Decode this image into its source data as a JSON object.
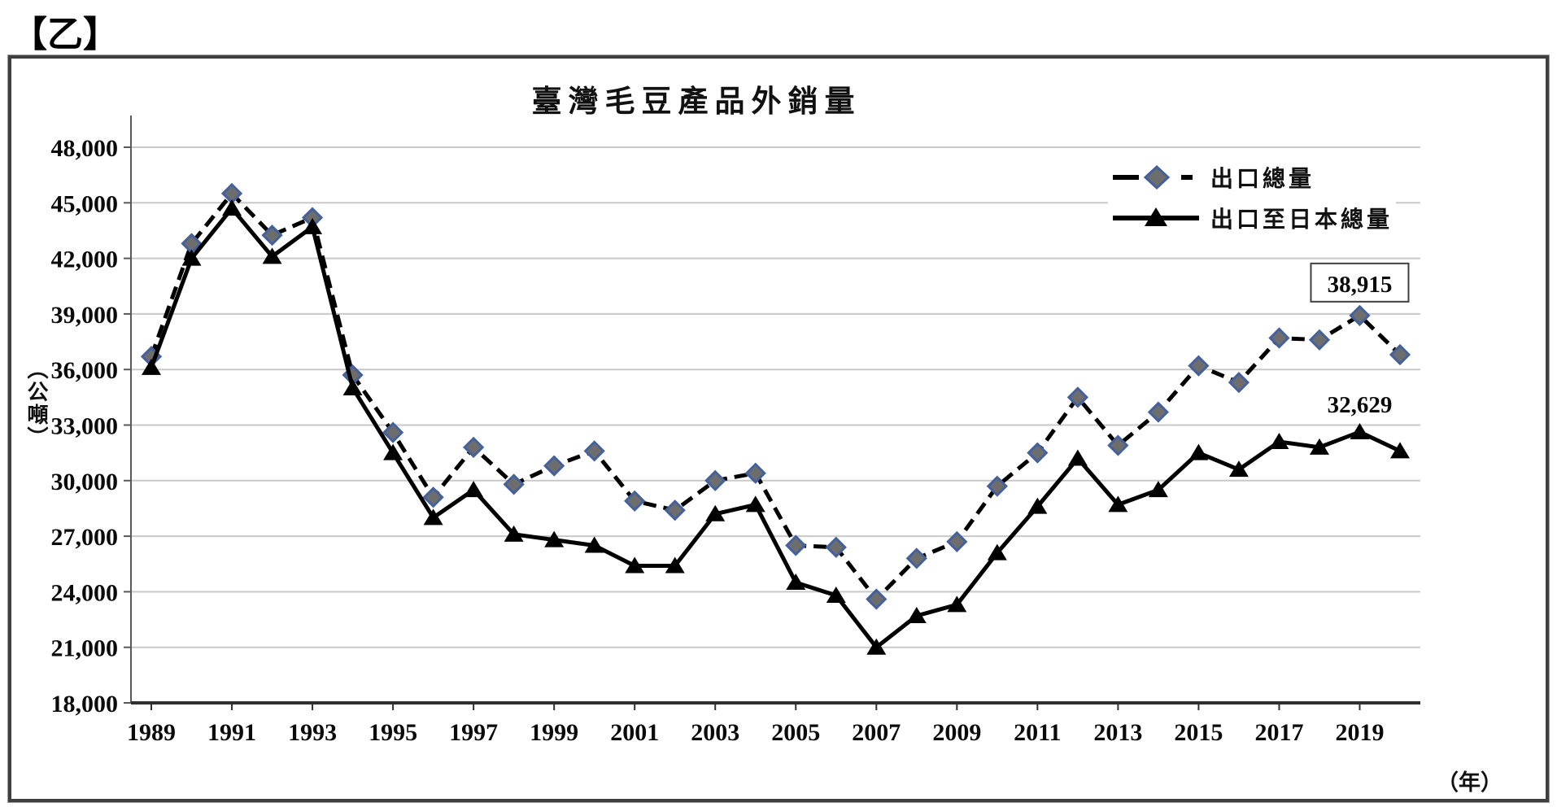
{
  "page_label": "【乙】",
  "chart_data": {
    "type": "line",
    "title": "臺灣毛豆產品外銷量",
    "y_unit": "（公噸）",
    "x_unit": "（年）",
    "ylim": [
      18000,
      48000
    ],
    "ytick_step": 3000,
    "yticks": [
      "48,000",
      "45,000",
      "42,000",
      "39,000",
      "36,000",
      "33,000",
      "30,000",
      "27,000",
      "24,000",
      "21,000",
      "18,000"
    ],
    "x": [
      1989,
      1990,
      1991,
      1992,
      1993,
      1994,
      1995,
      1996,
      1997,
      1998,
      1999,
      2000,
      2001,
      2002,
      2003,
      2004,
      2005,
      2006,
      2007,
      2008,
      2009,
      2010,
      2011,
      2012,
      2013,
      2014,
      2015,
      2016,
      2017,
      2018,
      2019,
      2020
    ],
    "xtick_labels": [
      "1989",
      "1991",
      "1993",
      "1995",
      "1997",
      "1999",
      "2001",
      "2003",
      "2005",
      "2007",
      "2009",
      "2011",
      "2013",
      "2015",
      "2017",
      "2019"
    ],
    "grid": "horizontal",
    "legend_position": "top-right",
    "colors": {
      "line": "#000000",
      "diamond_fill": "#6d6d6d",
      "diamond_stroke": "#44619d",
      "triangle_fill": "#000000",
      "gridline": "#c9c9c9",
      "axis": "#595959"
    },
    "series": [
      {
        "name": "出口總量",
        "style": "dashed",
        "marker": "diamond",
        "values": [
          36700,
          42800,
          45500,
          43250,
          44200,
          35700,
          32600,
          29100,
          31800,
          29800,
          30800,
          31600,
          28900,
          28400,
          30000,
          30400,
          26500,
          26400,
          23600,
          25800,
          26700,
          29700,
          31500,
          34500,
          31900,
          33700,
          36200,
          35300,
          37700,
          37600,
          38915,
          36800
        ]
      },
      {
        "name": "出口至日本總量",
        "style": "solid",
        "marker": "triangle",
        "values": [
          36100,
          42000,
          44700,
          42100,
          43700,
          35000,
          31500,
          28000,
          29500,
          27100,
          26800,
          26500,
          25400,
          25400,
          28200,
          28700,
          24500,
          23800,
          21000,
          22700,
          23300,
          26100,
          28600,
          31200,
          28700,
          29500,
          31500,
          30600,
          32100,
          31800,
          32629,
          31600
        ]
      }
    ],
    "annotations": [
      {
        "text": "38,915",
        "series": 0,
        "year": 2019,
        "boxed": true
      },
      {
        "text": "32,629",
        "series": 1,
        "year": 2019,
        "boxed": false
      }
    ]
  }
}
